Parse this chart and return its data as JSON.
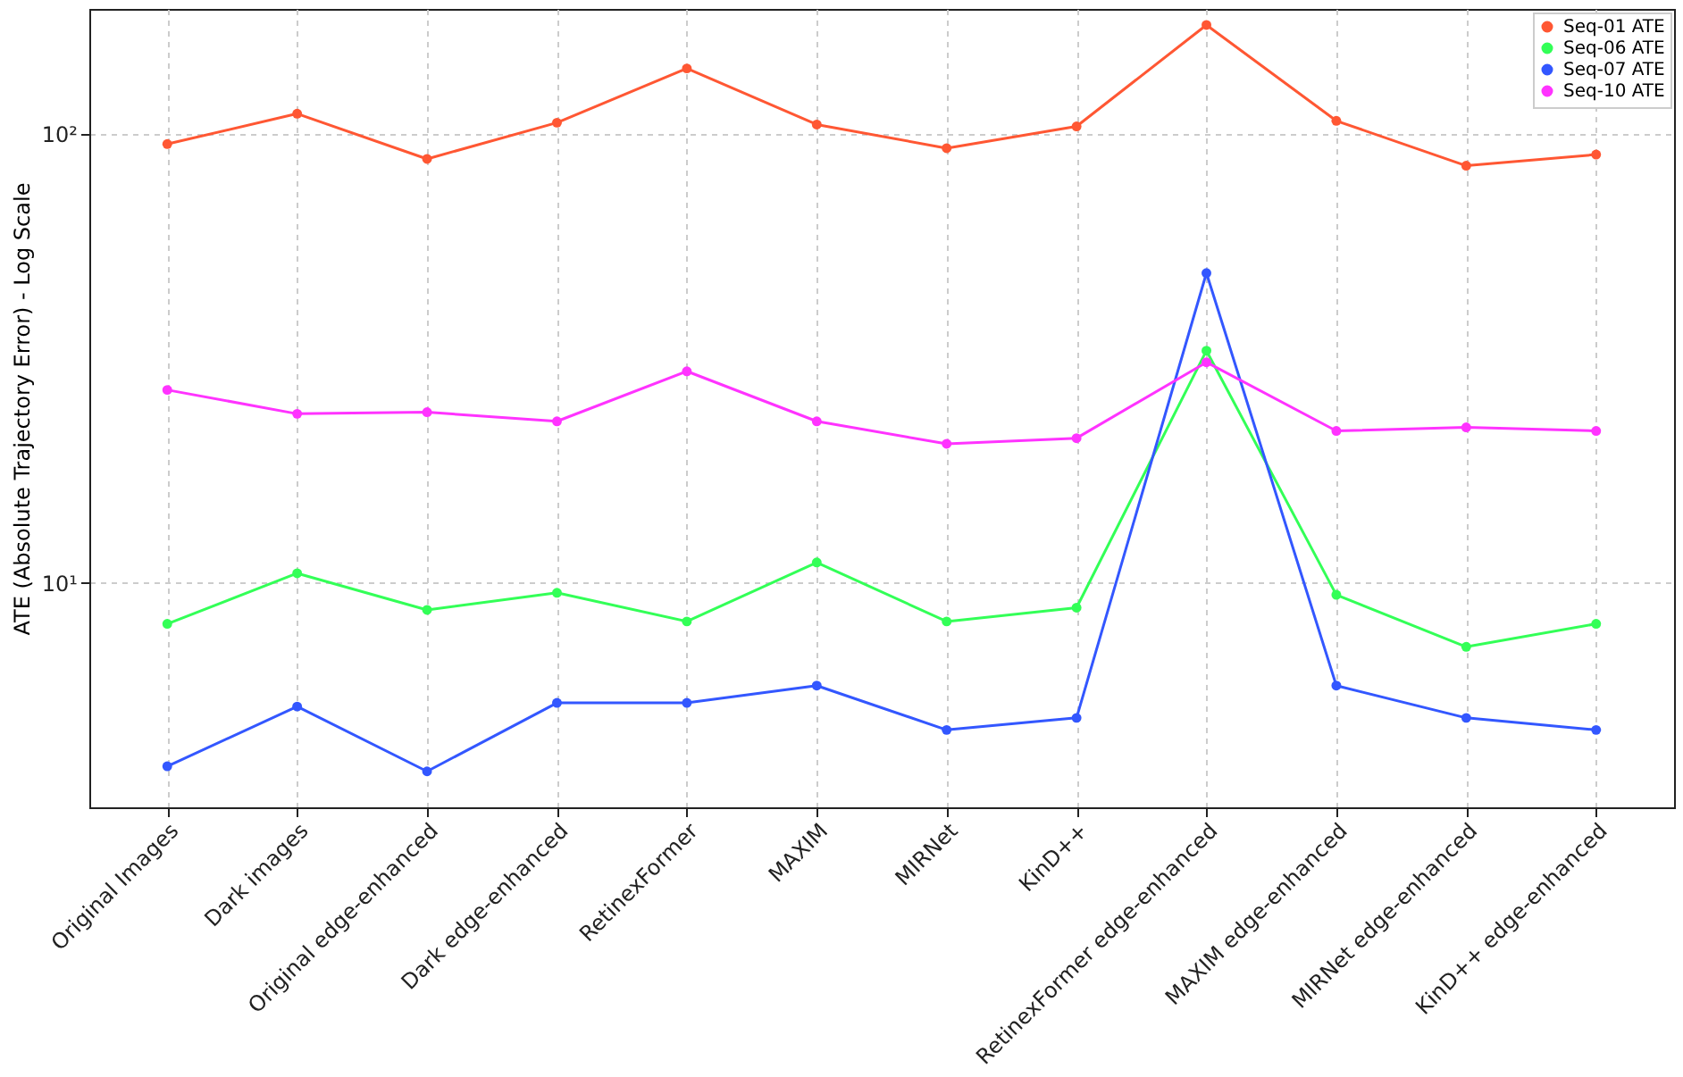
{
  "chart_data": {
    "type": "line",
    "ylabel": "ATE (Absolute Trajectory Error) - Log Scale",
    "categories": [
      "Original Images",
      "Dark images",
      "Original edge-enhanced",
      "Dark edge-enhanced",
      "RetinexFormer",
      "MAXIM",
      "MIRNet",
      "KinD++",
      "RetinexFormer edge-enhanced",
      "MAXIM edge-enhanced",
      "MIRNet edge-enhanced",
      "KinD++ edge-enhanced"
    ],
    "series": [
      {
        "name": "Seq-01 ATE",
        "color": "#ff5733",
        "values": [
          95,
          111,
          88,
          106,
          140,
          105,
          93,
          104,
          175,
          107,
          85,
          90
        ]
      },
      {
        "name": "Seq-06 ATE",
        "color": "#33ff57",
        "values": [
          8.1,
          10.5,
          8.7,
          9.5,
          8.2,
          11.1,
          8.2,
          8.8,
          32.9,
          9.4,
          7.2,
          8.1
        ]
      },
      {
        "name": "Seq-07 ATE",
        "color": "#3357ff",
        "values": [
          3.9,
          5.3,
          3.8,
          5.4,
          5.4,
          5.9,
          4.7,
          5.0,
          49,
          5.9,
          5.0,
          4.7
        ]
      },
      {
        "name": "Seq-10 ATE",
        "color": "#ff33ff",
        "values": [
          26.9,
          23.8,
          24.0,
          22.9,
          29.6,
          22.9,
          20.4,
          21.0,
          31.0,
          21.8,
          22.2,
          21.8
        ]
      }
    ],
    "log": true,
    "ylim": [
      3.16,
      190
    ],
    "yticks": [
      {
        "value": 10,
        "label": "10¹"
      },
      {
        "value": 100,
        "label": "10²"
      }
    ],
    "grid": true,
    "legend": "top right",
    "marker": "circle",
    "line_style": "solid"
  }
}
